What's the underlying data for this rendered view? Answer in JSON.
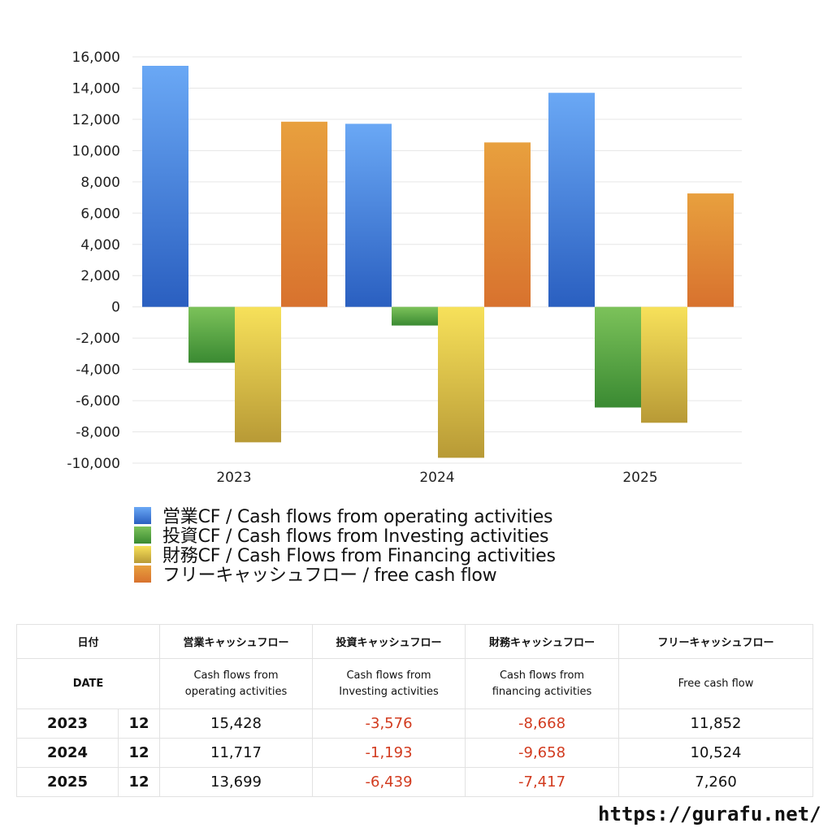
{
  "chart_data": {
    "type": "bar",
    "categories": [
      "2023",
      "2024",
      "2025"
    ],
    "ylim": [
      -10000,
      16000
    ],
    "yticks": [
      16000,
      14000,
      12000,
      10000,
      8000,
      6000,
      4000,
      2000,
      0,
      -2000,
      -4000,
      -6000,
      -8000,
      -10000
    ],
    "ytick_labels": [
      "16,000",
      "14,000",
      "12,000",
      "10,000",
      "8,000",
      "6,000",
      "4,000",
      "2,000",
      "0",
      "-2,000",
      "-4,000",
      "-6,000",
      "-8,000",
      "-10,000"
    ],
    "series": [
      {
        "name": "営業CF / Cash flows from operating activities",
        "values": [
          15428,
          11717,
          13699
        ],
        "color_top": "#6aa8f5",
        "color_bottom": "#2a5fc0"
      },
      {
        "name": "投資CF / Cash flows from Investing activities",
        "values": [
          -3576,
          -1193,
          -6439
        ],
        "color_top": "#7cc25a",
        "color_bottom": "#3a8a32"
      },
      {
        "name": "財務CF / Cash Flows from Financing activities",
        "values": [
          -8668,
          -9658,
          -7417
        ],
        "color_top": "#f7e15a",
        "color_bottom": "#b89a36"
      },
      {
        "name": "フリーキャッシュフロー / free cash flow",
        "values": [
          11852,
          10524,
          7260
        ],
        "color_top": "#e8a03e",
        "color_bottom": "#d8722e"
      }
    ]
  },
  "table": {
    "header1": {
      "date": "日付",
      "operating": "営業キャッシュフロー",
      "investing": "投資キャッシュフロー",
      "financing": "財務キャッシュフロー",
      "free": "フリーキャッシュフロー"
    },
    "header2": {
      "date": "DATE",
      "operating_line1": "Cash flows from",
      "operating_line2": "operating activities",
      "investing_line1": "Cash flows from",
      "investing_line2": "Investing activities",
      "financing_line1": "Cash flows from",
      "financing_line2": "financing activities",
      "free": "Free cash flow"
    },
    "rows": [
      {
        "year": "2023",
        "month": "12",
        "operating": "15,428",
        "investing": "-3,576",
        "financing": "-8,668",
        "free": "11,852"
      },
      {
        "year": "2024",
        "month": "12",
        "operating": "11,717",
        "investing": "-1,193",
        "financing": "-9,658",
        "free": "10,524"
      },
      {
        "year": "2025",
        "month": "12",
        "operating": "13,699",
        "investing": "-6,439",
        "financing": "-7,417",
        "free": "7,260"
      }
    ]
  },
  "source_url": "https://gurafu.net/"
}
